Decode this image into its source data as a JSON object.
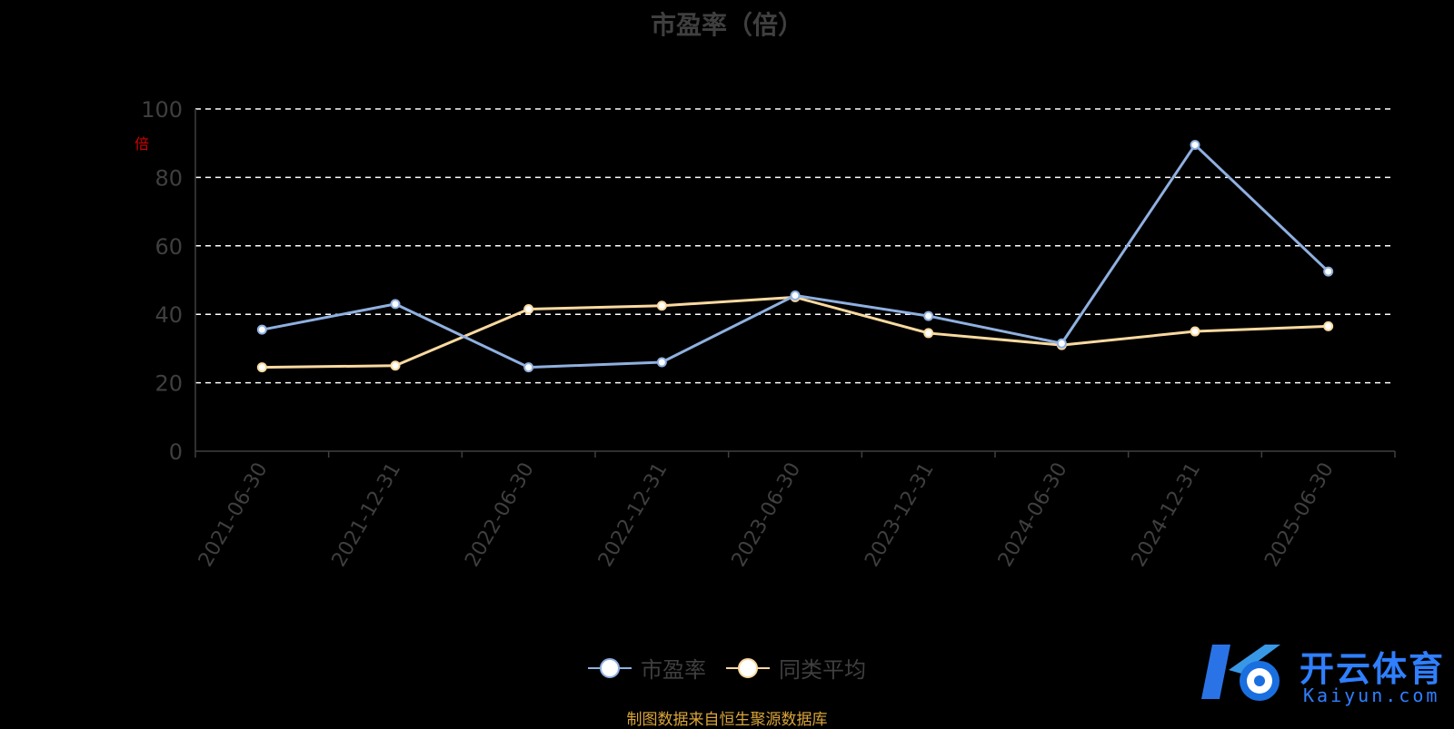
{
  "chart_data": {
    "type": "line",
    "title": "市盈率（倍）",
    "ylabel": "倍",
    "categories": [
      "2021-06-30",
      "2021-12-31",
      "2022-06-30",
      "2022-12-31",
      "2023-06-30",
      "2023-12-31",
      "2024-06-30",
      "2024-12-31",
      "2025-06-30"
    ],
    "series": [
      {
        "name": "市盈率",
        "color": "#8fb0e0",
        "values": [
          35.5,
          43.0,
          24.5,
          26.0,
          45.5,
          39.5,
          31.5,
          89.5,
          52.5
        ]
      },
      {
        "name": "同类平均",
        "color": "#f9d9a0",
        "values": [
          24.5,
          25.0,
          41.5,
          42.5,
          45.0,
          34.5,
          31.0,
          35.0,
          36.5
        ]
      }
    ],
    "ylim": [
      0,
      100
    ],
    "yticks": [
      0,
      20,
      40,
      60,
      80,
      100
    ],
    "grid": true,
    "legend_position": "bottom-center"
  },
  "source_note": "制图数据来自恒生聚源数据库",
  "watermark": {
    "brand": "开云体育",
    "site": "Kaiyun.com"
  }
}
